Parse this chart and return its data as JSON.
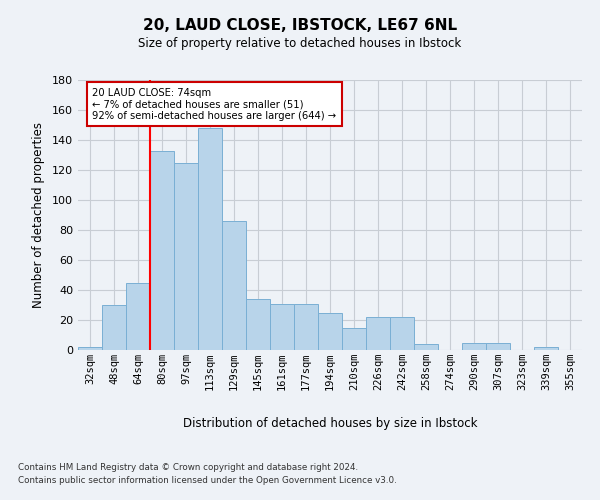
{
  "title": "20, LAUD CLOSE, IBSTOCK, LE67 6NL",
  "subtitle": "Size of property relative to detached houses in Ibstock",
  "xlabel": "Distribution of detached houses by size in Ibstock",
  "ylabel": "Number of detached properties",
  "categories": [
    "32sqm",
    "48sqm",
    "64sqm",
    "80sqm",
    "97sqm",
    "113sqm",
    "129sqm",
    "145sqm",
    "161sqm",
    "177sqm",
    "194sqm",
    "210sqm",
    "226sqm",
    "242sqm",
    "258sqm",
    "274sqm",
    "290sqm",
    "307sqm",
    "323sqm",
    "339sqm",
    "355sqm"
  ],
  "values": [
    2,
    30,
    45,
    133,
    125,
    148,
    86,
    34,
    31,
    31,
    25,
    15,
    22,
    22,
    4,
    0,
    5,
    5,
    0,
    2,
    0
  ],
  "bar_color": "#b8d4ea",
  "bar_edge_color": "#7aafd4",
  "red_line_x": 2.5,
  "annotation_text": "20 LAUD CLOSE: 74sqm\n← 7% of detached houses are smaller (51)\n92% of semi-detached houses are larger (644) →",
  "annotation_box_color": "#ffffff",
  "annotation_box_edge": "#cc0000",
  "ylim": [
    0,
    180
  ],
  "yticks": [
    0,
    20,
    40,
    60,
    80,
    100,
    120,
    140,
    160,
    180
  ],
  "footnote1": "Contains HM Land Registry data © Crown copyright and database right 2024.",
  "footnote2": "Contains public sector information licensed under the Open Government Licence v3.0.",
  "bg_color": "#eef2f7",
  "plot_bg_color": "#eef2f7",
  "grid_color": "#c8cdd4"
}
